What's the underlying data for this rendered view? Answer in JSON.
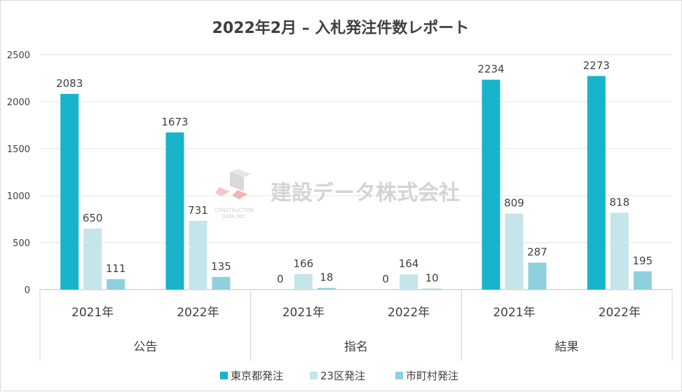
{
  "chart_data": {
    "type": "bar",
    "title": "2022年2月 – 入札発注件数レポート",
    "ylim": [
      0,
      2500
    ],
    "yticks": [
      0,
      500,
      1000,
      1500,
      2000,
      2500
    ],
    "grid": true,
    "legend_position": "bottom",
    "groups": [
      {
        "label": "公告",
        "subcategories": [
          "2021年",
          "2022年"
        ]
      },
      {
        "label": "指名",
        "subcategories": [
          "2021年",
          "2022年"
        ]
      },
      {
        "label": "結果",
        "subcategories": [
          "2021年",
          "2022年"
        ]
      }
    ],
    "series": [
      {
        "name": "東京都発注",
        "color": "#17b4cc",
        "values": [
          2083,
          1673,
          0,
          0,
          2234,
          2273
        ]
      },
      {
        "name": "23区発注",
        "color": "#c5e5ea",
        "values": [
          650,
          731,
          166,
          164,
          809,
          818
        ]
      },
      {
        "name": "市町村発注",
        "color": "#8dd1df",
        "values": [
          111,
          135,
          18,
          10,
          287,
          195
        ]
      }
    ]
  },
  "watermark": {
    "company": "建設データ株式会社",
    "logo_line1": "CONSTRUCTION",
    "logo_line2": "DATA,INC."
  }
}
